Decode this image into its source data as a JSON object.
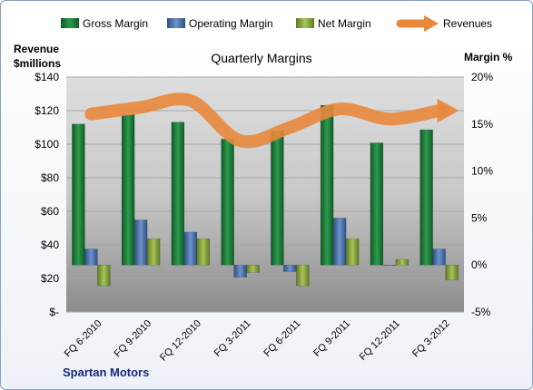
{
  "chart_data": {
    "type": "bar",
    "title": "Quarterly Margins",
    "company": "Spartan Motors",
    "left_axis_title": [
      "Revenue",
      "$millions"
    ],
    "right_axis_title": "Margin %",
    "categories": [
      "FQ 6-2010",
      "FQ 9-2010",
      "FQ 12-2010",
      "FQ 3-2011",
      "FQ 6-2011",
      "FQ 9-2011",
      "FQ 12-2011",
      "FQ 3-2012"
    ],
    "left_ticks": [
      "$-",
      "$20",
      "$40",
      "$60",
      "$80",
      "$100",
      "$120",
      "$140"
    ],
    "left_ylim": [
      0,
      140
    ],
    "right_ticks": [
      "-5%",
      "0%",
      "5%",
      "10%",
      "15%",
      "20%"
    ],
    "right_ylim": [
      -5,
      20
    ],
    "legend_position": "top",
    "series": [
      {
        "name": "Gross Margin",
        "axis": "right",
        "color": "#1f7a3a",
        "values": [
          15,
          16,
          15.2,
          13.4,
          14.3,
          17,
          13,
          14.4
        ]
      },
      {
        "name": "Operating Margin",
        "axis": "right",
        "color": "#4a6fa8",
        "values": [
          1.7,
          4.8,
          3.5,
          -1.3,
          -0.7,
          5,
          0,
          1.7
        ]
      },
      {
        "name": "Net Margin",
        "axis": "right",
        "color": "#8aa83a",
        "values": [
          -2.2,
          2.8,
          2.8,
          -0.8,
          -2.2,
          2.8,
          0.6,
          -1.6
        ]
      },
      {
        "name": "Revenues",
        "axis": "left",
        "type": "line",
        "color": "#e8883c",
        "values": [
          118,
          122,
          126,
          102,
          110,
          121,
          115,
          120
        ]
      }
    ]
  }
}
